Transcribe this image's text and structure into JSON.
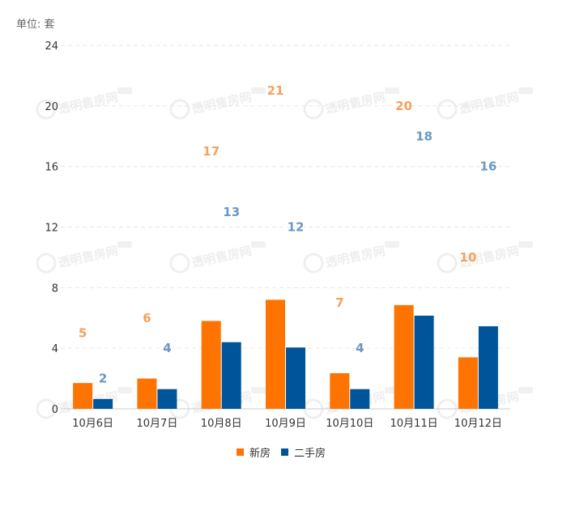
{
  "unit_label": "单位: 套",
  "watermark": "透明售房网",
  "colors": {
    "new": "#ff7300",
    "second": "#00559a",
    "new_label": "#f5a15c",
    "second_label": "#6a98c2"
  },
  "chart_data": {
    "type": "bar",
    "title": "",
    "xlabel": "",
    "ylabel": "单位: 套",
    "ylim": [
      0,
      24
    ],
    "yticks": [
      0,
      4,
      8,
      12,
      16,
      20,
      24
    ],
    "grid": true,
    "legend_position": "bottom-center",
    "categories": [
      "10月6日",
      "10月7日",
      "10月8日",
      "10月9日",
      "10月10日",
      "10月11日",
      "10月12日"
    ],
    "series": [
      {
        "name": "新房",
        "values": [
          5,
          6,
          17,
          21,
          7,
          20,
          10
        ],
        "bar_heights": [
          1.7,
          2.0,
          5.8,
          7.2,
          2.35,
          6.85,
          3.4
        ]
      },
      {
        "name": "二手房",
        "values": [
          2,
          4,
          13,
          12,
          4,
          18,
          16
        ],
        "bar_heights": [
          0.65,
          1.3,
          4.4,
          4.05,
          1.3,
          6.15,
          5.45
        ]
      }
    ]
  }
}
